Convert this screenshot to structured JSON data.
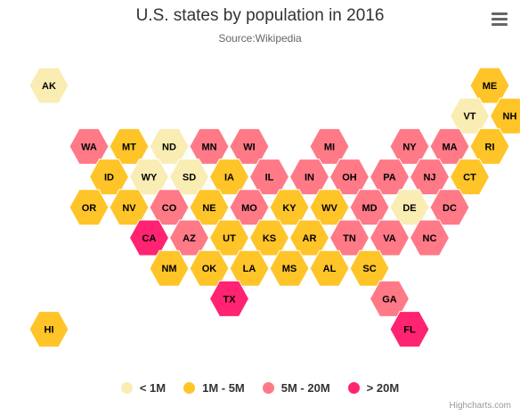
{
  "title": "U.S. states by population in 2016",
  "subtitle": "Source:Wikipedia",
  "credits": "Highcharts.com",
  "menu_icon": "hamburger-menu-icon",
  "legend": [
    {
      "label": "< 1M",
      "color": "#F9EDB3"
    },
    {
      "label": "1M - 5M",
      "color": "#FFC428"
    },
    {
      "label": "5M - 20M",
      "color": "#FF7987"
    },
    {
      "label": "> 20M",
      "color": "#FF2371"
    }
  ],
  "chart_data": {
    "type": "tilemap",
    "tile_shape": "hexagon",
    "value_classes": [
      {
        "label": "< 1M",
        "to": 1000000,
        "color": "#F9EDB3"
      },
      {
        "label": "1M - 5M",
        "from": 1000000,
        "to": 5000000,
        "color": "#FFC428"
      },
      {
        "label": "5M - 20M",
        "from": 5000000,
        "to": 20000000,
        "color": "#FF7987"
      },
      {
        "label": "> 20M",
        "from": 20000000,
        "color": "#FF2371"
      }
    ],
    "points": [
      {
        "code": "AK",
        "row": 0,
        "col": 0,
        "cls": 0
      },
      {
        "code": "ME",
        "row": 0,
        "col": 11,
        "cls": 1
      },
      {
        "code": "VT",
        "row": 1,
        "col": 10,
        "cls": 0
      },
      {
        "code": "NH",
        "row": 1,
        "col": 11,
        "cls": 1
      },
      {
        "code": "WA",
        "row": 2,
        "col": 1,
        "cls": 2
      },
      {
        "code": "MT",
        "row": 2,
        "col": 2,
        "cls": 1
      },
      {
        "code": "ND",
        "row": 2,
        "col": 3,
        "cls": 0
      },
      {
        "code": "MN",
        "row": 2,
        "col": 4,
        "cls": 2
      },
      {
        "code": "WI",
        "row": 2,
        "col": 5,
        "cls": 2
      },
      {
        "code": "MI",
        "row": 2,
        "col": 7,
        "cls": 2
      },
      {
        "code": "NY",
        "row": 2,
        "col": 9,
        "cls": 2
      },
      {
        "code": "MA",
        "row": 2,
        "col": 10,
        "cls": 2
      },
      {
        "code": "RI",
        "row": 2,
        "col": 11,
        "cls": 1
      },
      {
        "code": "ID",
        "row": 3,
        "col": 1,
        "cls": 1
      },
      {
        "code": "WY",
        "row": 3,
        "col": 2,
        "cls": 0
      },
      {
        "code": "SD",
        "row": 3,
        "col": 3,
        "cls": 0
      },
      {
        "code": "IA",
        "row": 3,
        "col": 4,
        "cls": 1
      },
      {
        "code": "IL",
        "row": 3,
        "col": 5,
        "cls": 2
      },
      {
        "code": "IN",
        "row": 3,
        "col": 6,
        "cls": 2
      },
      {
        "code": "OH",
        "row": 3,
        "col": 7,
        "cls": 2
      },
      {
        "code": "PA",
        "row": 3,
        "col": 8,
        "cls": 2
      },
      {
        "code": "NJ",
        "row": 3,
        "col": 9,
        "cls": 2
      },
      {
        "code": "CT",
        "row": 3,
        "col": 10,
        "cls": 1
      },
      {
        "code": "OR",
        "row": 4,
        "col": 1,
        "cls": 1
      },
      {
        "code": "NV",
        "row": 4,
        "col": 2,
        "cls": 1
      },
      {
        "code": "CO",
        "row": 4,
        "col": 3,
        "cls": 2
      },
      {
        "code": "NE",
        "row": 4,
        "col": 4,
        "cls": 1
      },
      {
        "code": "MO",
        "row": 4,
        "col": 5,
        "cls": 2
      },
      {
        "code": "KY",
        "row": 4,
        "col": 6,
        "cls": 1
      },
      {
        "code": "WV",
        "row": 4,
        "col": 7,
        "cls": 1
      },
      {
        "code": "MD",
        "row": 4,
        "col": 8,
        "cls": 2
      },
      {
        "code": "DE",
        "row": 4,
        "col": 9,
        "cls": 0
      },
      {
        "code": "DC",
        "row": 4,
        "col": 10,
        "cls": 2
      },
      {
        "code": "CA",
        "row": 5,
        "col": 2,
        "cls": 3
      },
      {
        "code": "AZ",
        "row": 5,
        "col": 3,
        "cls": 2
      },
      {
        "code": "UT",
        "row": 5,
        "col": 4,
        "cls": 1
      },
      {
        "code": "KS",
        "row": 5,
        "col": 5,
        "cls": 1
      },
      {
        "code": "AR",
        "row": 5,
        "col": 6,
        "cls": 1
      },
      {
        "code": "TN",
        "row": 5,
        "col": 7,
        "cls": 2
      },
      {
        "code": "VA",
        "row": 5,
        "col": 8,
        "cls": 2
      },
      {
        "code": "NC",
        "row": 5,
        "col": 9,
        "cls": 2
      },
      {
        "code": "NM",
        "row": 6,
        "col": 3,
        "cls": 1
      },
      {
        "code": "OK",
        "row": 6,
        "col": 4,
        "cls": 1
      },
      {
        "code": "LA",
        "row": 6,
        "col": 5,
        "cls": 1
      },
      {
        "code": "MS",
        "row": 6,
        "col": 6,
        "cls": 1
      },
      {
        "code": "AL",
        "row": 6,
        "col": 7,
        "cls": 1
      },
      {
        "code": "SC",
        "row": 6,
        "col": 8,
        "cls": 1
      },
      {
        "code": "TX",
        "row": 7,
        "col": 4,
        "cls": 3
      },
      {
        "code": "GA",
        "row": 7,
        "col": 8,
        "cls": 2
      },
      {
        "code": "HI",
        "row": 8,
        "col": 0,
        "cls": 1
      },
      {
        "code": "FL",
        "row": 8,
        "col": 9,
        "cls": 3
      }
    ]
  }
}
